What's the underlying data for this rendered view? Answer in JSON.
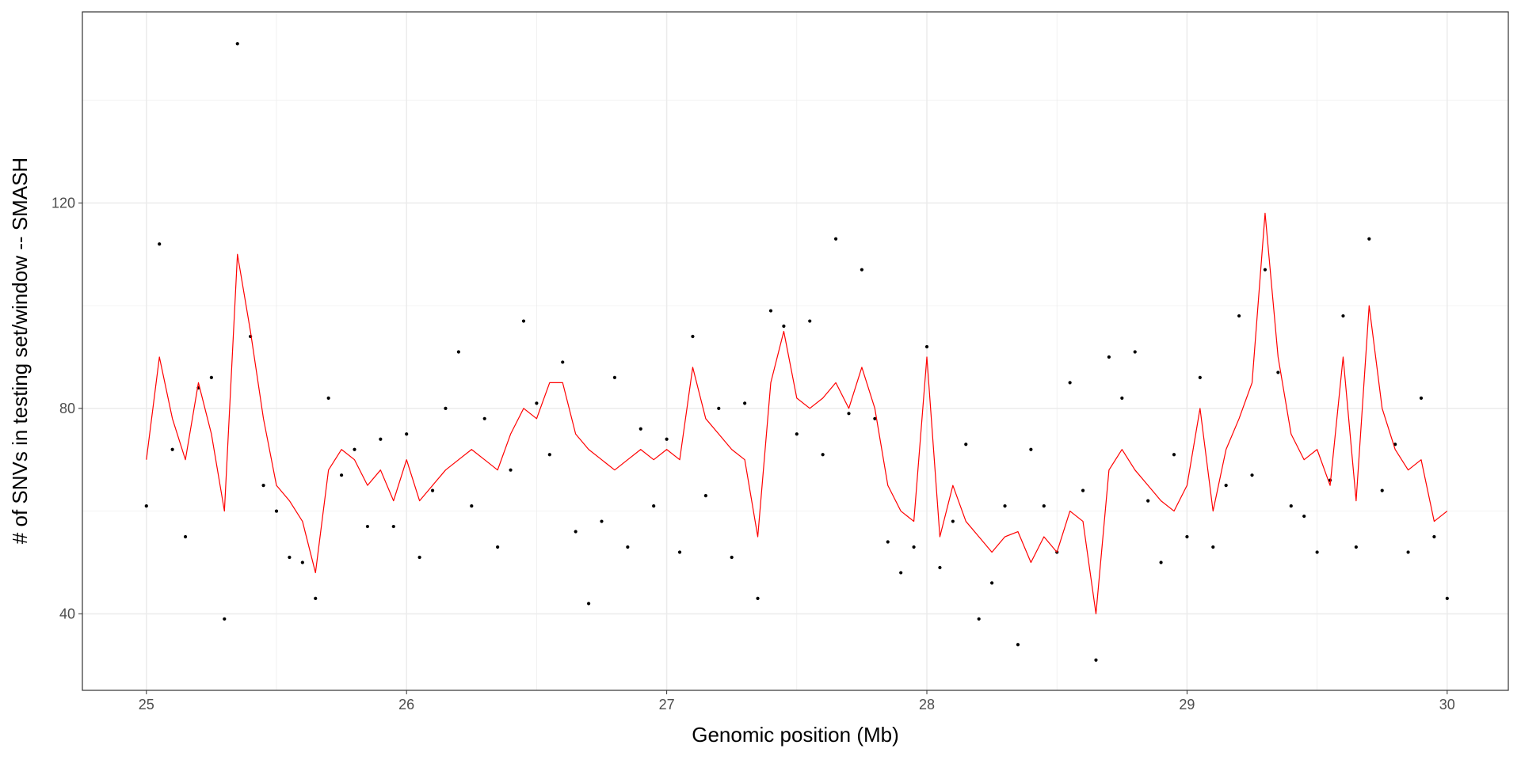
{
  "chart_data": {
    "type": "scatter",
    "x_label": "Genomic position (Mb)",
    "y_label": "# of SNVs in testing set/window -- SMASH",
    "x": [
      25.0,
      25.05,
      25.1,
      25.15,
      25.2,
      25.25,
      25.3,
      25.35,
      25.4,
      25.45,
      25.5,
      25.55,
      25.6,
      25.65,
      25.7,
      25.75,
      25.8,
      25.85,
      25.9,
      25.95,
      26.0,
      26.05,
      26.1,
      26.15,
      26.2,
      26.25,
      26.3,
      26.35,
      26.4,
      26.45,
      26.5,
      26.55,
      26.6,
      26.65,
      26.7,
      26.75,
      26.8,
      26.85,
      26.9,
      26.95,
      27.0,
      27.05,
      27.1,
      27.15,
      27.2,
      27.25,
      27.3,
      27.35,
      27.4,
      27.45,
      27.5,
      27.55,
      27.6,
      27.65,
      27.7,
      27.75,
      27.8,
      27.85,
      27.9,
      27.95,
      28.0,
      28.05,
      28.1,
      28.15,
      28.2,
      28.25,
      28.3,
      28.35,
      28.4,
      28.45,
      28.5,
      28.55,
      28.6,
      28.65,
      28.7,
      28.75,
      28.8,
      28.85,
      28.9,
      28.95,
      29.0,
      29.05,
      29.1,
      29.15,
      29.2,
      29.25,
      29.3,
      29.35,
      29.4,
      29.45,
      29.5,
      29.55,
      29.6,
      29.65,
      29.7,
      29.75,
      29.8,
      29.85,
      29.9,
      29.95,
      30.0
    ],
    "series": [
      {
        "type": "scatter",
        "color": "#000000",
        "values": [
          61,
          112,
          72,
          55,
          84,
          86,
          39,
          151,
          94,
          65,
          60,
          51,
          50,
          43,
          82,
          67,
          72,
          57,
          74,
          57,
          75,
          51,
          64,
          80,
          91,
          61,
          78,
          53,
          68,
          97,
          81,
          71,
          89,
          56,
          42,
          58,
          86,
          53,
          76,
          61,
          74,
          52,
          94,
          63,
          80,
          51,
          81,
          43,
          99,
          96,
          75,
          97,
          71,
          113,
          79,
          107,
          78,
          54,
          48,
          53,
          92,
          49,
          58,
          73,
          39,
          46,
          61,
          34,
          72,
          61,
          52,
          85,
          64,
          31,
          90,
          82,
          91,
          62,
          50,
          71,
          55,
          86,
          53,
          65,
          98,
          67,
          107,
          87,
          61,
          59,
          52,
          66,
          98,
          53,
          113,
          64,
          73,
          52,
          82,
          55,
          43
        ]
      },
      {
        "type": "line",
        "color": "#ff0000",
        "values": [
          70,
          90,
          78,
          70,
          85,
          75,
          60,
          110,
          95,
          78,
          65,
          62,
          58,
          48,
          68,
          72,
          70,
          65,
          68,
          62,
          70,
          62,
          65,
          68,
          70,
          72,
          70,
          68,
          75,
          80,
          78,
          85,
          85,
          75,
          72,
          70,
          68,
          70,
          72,
          70,
          72,
          70,
          88,
          78,
          75,
          72,
          70,
          55,
          85,
          95,
          82,
          80,
          82,
          85,
          80,
          88,
          80,
          65,
          60,
          58,
          90,
          55,
          65,
          58,
          55,
          52,
          55,
          56,
          50,
          55,
          52,
          60,
          58,
          40,
          68,
          72,
          68,
          65,
          62,
          60,
          65,
          80,
          60,
          72,
          78,
          85,
          118,
          90,
          75,
          70,
          72,
          65,
          90,
          62,
          100,
          80,
          72,
          68,
          70,
          58,
          60
        ]
      }
    ],
    "xlim": [
      24.754,
      30.235
    ],
    "xticks": [
      25,
      26,
      27,
      28,
      29,
      30
    ],
    "ylim": [
      25.1,
      157.2
    ],
    "yticks": [
      40,
      80,
      120
    ],
    "grid": true
  }
}
